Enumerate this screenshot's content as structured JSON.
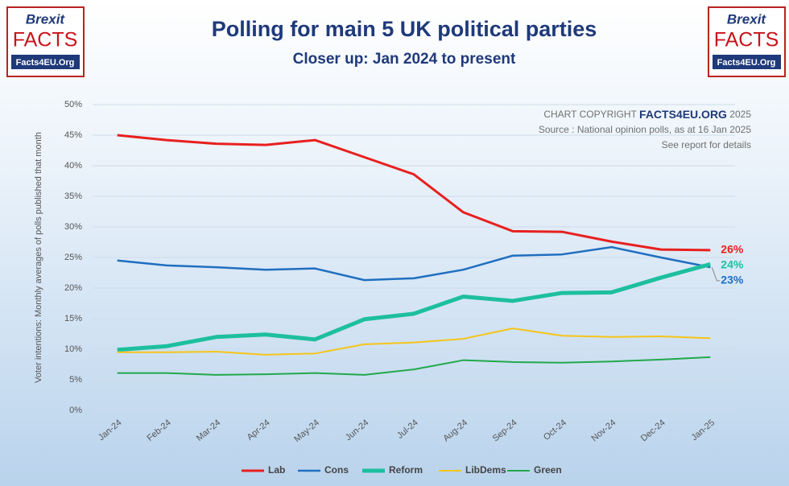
{
  "logo": {
    "brand": "Brexit",
    "name": "FACTS",
    "site": "Facts4EU.Org"
  },
  "chart_data": {
    "type": "line",
    "title": "Polling for main 5 UK political parties",
    "subtitle": "Closer up: Jan 2024 to present",
    "y_label": "Voter intentions: Monthly averages of polls published that month",
    "annotations": {
      "copyright_prefix": "CHART COPYRIGHT",
      "copyright_brand": "FACTS4EU.ORG",
      "copyright_year": "2025",
      "source": "Source : National opinion polls, as at 16 Jan 2025",
      "note": "See report for details"
    },
    "categories": [
      "Jan-24",
      "Feb-24",
      "Mar-24",
      "Apr-24",
      "May-24",
      "Jun-24",
      "Jul-24",
      "Aug-24",
      "Sep-24",
      "Oct-24",
      "Nov-24",
      "Dec-24",
      "Jan-25"
    ],
    "series": [
      {
        "name": "Lab",
        "color": "#e8201f",
        "width": 3,
        "values": [
          45.0,
          44.2,
          43.6,
          43.4,
          44.2,
          41.4,
          38.6,
          32.4,
          29.3,
          29.2,
          27.6,
          26.3,
          26.2
        ],
        "value_labels": [
          null,
          null,
          null,
          null,
          null,
          null,
          null,
          null,
          null,
          null,
          null,
          null,
          "26%"
        ]
      },
      {
        "name": "Cons",
        "color": "#1f6fc0",
        "width": 2.5,
        "values": [
          24.5,
          23.7,
          23.4,
          23.0,
          23.2,
          21.3,
          21.6,
          23.0,
          25.3,
          25.5,
          26.7,
          25.0,
          23.4
        ],
        "value_labels": [
          null,
          null,
          null,
          null,
          null,
          null,
          null,
          null,
          null,
          null,
          null,
          null,
          "23%"
        ]
      },
      {
        "name": "Reform",
        "color": "#1dbf9e",
        "width": 5,
        "values": [
          9.9,
          10.5,
          12.0,
          12.4,
          11.6,
          14.9,
          15.8,
          18.6,
          17.9,
          19.2,
          19.3,
          21.7,
          23.9
        ],
        "value_labels": [
          null,
          null,
          null,
          null,
          null,
          null,
          null,
          null,
          null,
          null,
          null,
          null,
          "24%"
        ]
      },
      {
        "name": "LibDems",
        "color": "#f5c518",
        "width": 2,
        "values": [
          9.5,
          9.5,
          9.6,
          9.1,
          9.3,
          10.8,
          11.1,
          11.7,
          13.4,
          12.2,
          12.0,
          12.1,
          11.8
        ]
      },
      {
        "name": "Green",
        "color": "#22a84a",
        "width": 2,
        "values": [
          6.1,
          6.1,
          5.8,
          5.9,
          6.1,
          5.8,
          6.7,
          8.2,
          7.9,
          7.8,
          8.0,
          8.3,
          8.7
        ]
      }
    ],
    "ylim": [
      0,
      50
    ],
    "yticks": [
      {
        "value": 0,
        "label": "0%"
      },
      {
        "value": 5,
        "label": "5%"
      },
      {
        "value": 10,
        "label": "10%"
      },
      {
        "value": 15,
        "label": "15%"
      },
      {
        "value": 20,
        "label": "20%"
      },
      {
        "value": 25,
        "label": "25%"
      },
      {
        "value": 30,
        "label": "30%"
      },
      {
        "value": 35,
        "label": "35%"
      },
      {
        "value": 40,
        "label": "40%"
      },
      {
        "value": 45,
        "label": "45%"
      },
      {
        "value": 50,
        "label": "50%"
      }
    ],
    "grid": true,
    "legend": "bottom"
  }
}
